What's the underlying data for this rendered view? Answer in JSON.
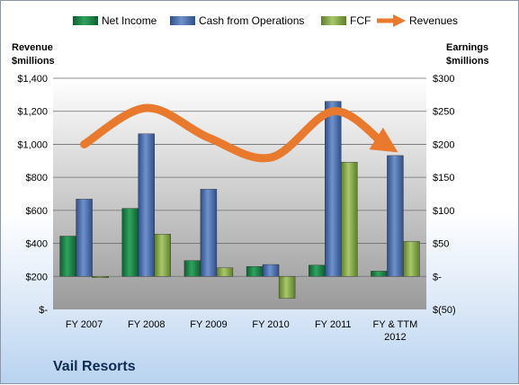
{
  "company": "Vail Resorts",
  "legend": {
    "net_income": "Net Income",
    "cfo": "Cash from Operations",
    "fcf": "FCF",
    "revenues": "Revenues"
  },
  "axes": {
    "left_title_1": "Revenue",
    "left_title_2": "$millions",
    "right_title_1": "Earnings",
    "right_title_2": "$millions"
  },
  "colors": {
    "net_income": "#1f8a4c",
    "cfo": "#4a6fb0",
    "fcf": "#8db04a",
    "revenues": "#e8792d"
  },
  "chart_data": {
    "type": "bar",
    "categories": [
      "FY 2007",
      "FY 2008",
      "FY 2009",
      "FY 2010",
      "FY 2011",
      "FY & TTM 2012"
    ],
    "category_labels": [
      [
        "FY 2007"
      ],
      [
        "FY 2008"
      ],
      [
        "FY 2009"
      ],
      [
        "FY 2010"
      ],
      [
        "FY 2011"
      ],
      [
        "FY & TTM",
        "2012"
      ]
    ],
    "series": [
      {
        "name": "Net Income",
        "axis": "right",
        "values": [
          61,
          103,
          24,
          15,
          17,
          8
        ]
      },
      {
        "name": "Cash from Operations",
        "axis": "right",
        "values": [
          117,
          216,
          132,
          18,
          265,
          183
        ]
      },
      {
        "name": "FCF",
        "axis": "right",
        "values": [
          -2,
          64,
          13,
          -33,
          173,
          53
        ]
      },
      {
        "name": "Revenues",
        "axis": "left",
        "type": "line",
        "values": [
          1000,
          1220,
          1040,
          920,
          1200,
          1010
        ]
      }
    ],
    "left_axis": {
      "min": 0,
      "max": 1400,
      "ticks": [
        0,
        200,
        400,
        600,
        800,
        1000,
        1200,
        1400
      ],
      "tick_labels": [
        "$-",
        "$200",
        "$400",
        "$600",
        "$800",
        "$1,000",
        "$1,200",
        "$1,400"
      ]
    },
    "right_axis": {
      "min": -50,
      "max": 300,
      "ticks": [
        -50,
        0,
        50,
        100,
        150,
        200,
        250,
        300
      ],
      "tick_labels": [
        "$(50)",
        "$-",
        "$50",
        "$100",
        "$150",
        "$200",
        "$250",
        "$300"
      ]
    },
    "legend_position": "top"
  }
}
